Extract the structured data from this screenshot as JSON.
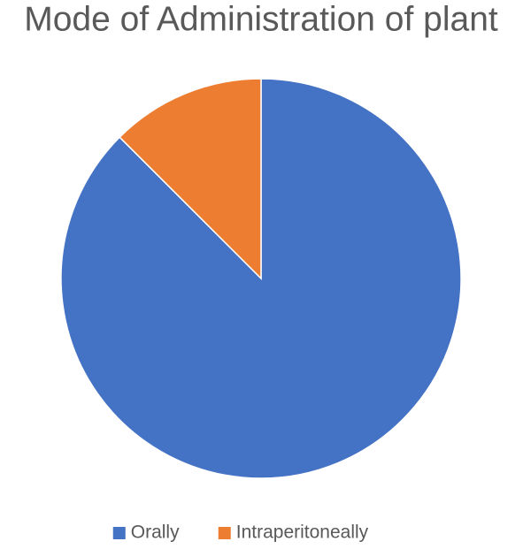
{
  "chart_data": {
    "type": "pie",
    "title": "Mode of Administration of plant",
    "categories": [
      "Orally",
      "Intraperitoneally"
    ],
    "values": [
      87.5,
      12.5
    ],
    "colors": [
      "#4472c4",
      "#ed7d31"
    ],
    "legend": "bottom"
  }
}
